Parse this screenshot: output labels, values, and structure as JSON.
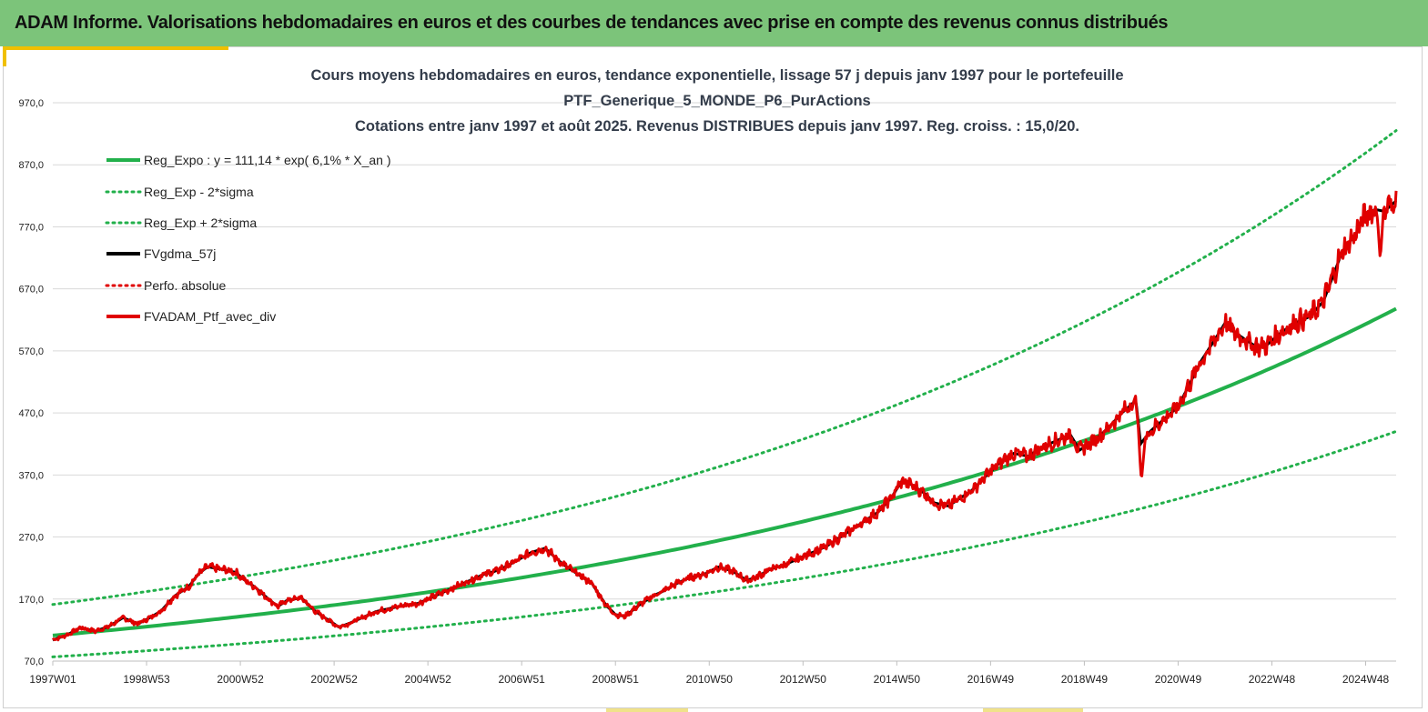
{
  "header": {
    "title": "ADAM Informe. Valorisations hebdomadaires en euros et des courbes de tendances avec prise en compte des revenus connus distribués",
    "bg_color": "#7cc47a"
  },
  "chart_data": {
    "type": "line",
    "title_lines": [
      "Cours moyens hebdomadaires  en euros, tendance exponentielle, lissage 57 j depuis janv 1997 pour le portefeuille",
      "PTF_Generique_5_MONDE_P6_PurActions",
      "Cotations  entre janv 1997 et août 2025. Revenus DISTRIBUES depuis janv 1997. Reg. croiss. : 15,0/20."
    ],
    "xlabel": "",
    "ylabel": "",
    "x_range": [
      1997.0,
      2025.65
    ],
    "ylim": [
      70,
      970
    ],
    "y_ticks": [
      "970,0",
      "870,0",
      "770,0",
      "670,0",
      "570,0",
      "470,0",
      "370,0",
      "270,0",
      "170,0",
      "70,0"
    ],
    "x_ticks": [
      {
        "label": "1997W01",
        "year": 1997.0
      },
      {
        "label": "1998W53",
        "year": 1999.0
      },
      {
        "label": "2000W52",
        "year": 2001.0
      },
      {
        "label": "2002W52",
        "year": 2003.0
      },
      {
        "label": "2004W52",
        "year": 2005.0
      },
      {
        "label": "2006W51",
        "year": 2007.0
      },
      {
        "label": "2008W51",
        "year": 2009.0
      },
      {
        "label": "2010W50",
        "year": 2011.0
      },
      {
        "label": "2012W50",
        "year": 2013.0
      },
      {
        "label": "2014W50",
        "year": 2015.0
      },
      {
        "label": "2016W49",
        "year": 2017.0
      },
      {
        "label": "2018W49",
        "year": 2019.0
      },
      {
        "label": "2020W49",
        "year": 2021.0
      },
      {
        "label": "2022W48",
        "year": 2023.0
      },
      {
        "label": "2024W48",
        "year": 2025.0
      }
    ],
    "grid": true,
    "legend_position": "top-left",
    "regression": {
      "a": 111.14,
      "rate": 0.061,
      "lower_factor": 0.69,
      "upper_factor": 1.45
    },
    "series": [
      {
        "name": "Reg_Expo : y = 111,14 * exp( 6,1% *  X_an )",
        "color": "#22b04b",
        "style": "solid"
      },
      {
        "name": "Reg_Exp - 2*sigma",
        "color": "#22b04b",
        "style": "dotted"
      },
      {
        "name": "Reg_Exp + 2*sigma",
        "color": "#22b04b",
        "style": "dotted"
      },
      {
        "name": "FVgdma_57j",
        "color": "#000000",
        "style": "solid"
      },
      {
        "name": "Perfo. absolue",
        "color": "#e00000",
        "style": "dotted"
      },
      {
        "name": "FVADAM_Ptf_avec_div",
        "color": "#e00000",
        "style": "solid"
      }
    ],
    "price_points": [
      [
        1997.0,
        104
      ],
      [
        1997.3,
        112
      ],
      [
        1997.6,
        124
      ],
      [
        1997.9,
        118
      ],
      [
        1998.2,
        126
      ],
      [
        1998.5,
        140
      ],
      [
        1998.8,
        130
      ],
      [
        1999.0,
        137
      ],
      [
        1999.3,
        150
      ],
      [
        1999.6,
        175
      ],
      [
        1999.9,
        190
      ],
      [
        2000.1,
        210
      ],
      [
        2000.3,
        222
      ],
      [
        2000.6,
        218
      ],
      [
        2000.9,
        213
      ],
      [
        2001.1,
        200
      ],
      [
        2001.3,
        190
      ],
      [
        2001.6,
        170
      ],
      [
        2001.8,
        158
      ],
      [
        2002.0,
        168
      ],
      [
        2002.3,
        172
      ],
      [
        2002.6,
        150
      ],
      [
        2002.9,
        135
      ],
      [
        2003.1,
        125
      ],
      [
        2003.3,
        130
      ],
      [
        2003.6,
        140
      ],
      [
        2003.9,
        150
      ],
      [
        2004.2,
        155
      ],
      [
        2004.5,
        160
      ],
      [
        2004.8,
        163
      ],
      [
        2005.0,
        170
      ],
      [
        2005.3,
        180
      ],
      [
        2005.6,
        190
      ],
      [
        2005.9,
        200
      ],
      [
        2006.2,
        210
      ],
      [
        2006.4,
        214
      ],
      [
        2006.6,
        220
      ],
      [
        2006.9,
        232
      ],
      [
        2007.2,
        245
      ],
      [
        2007.5,
        252
      ],
      [
        2007.7,
        238
      ],
      [
        2007.9,
        225
      ],
      [
        2008.2,
        210
      ],
      [
        2008.5,
        195
      ],
      [
        2008.8,
        160
      ],
      [
        2009.0,
        145
      ],
      [
        2009.2,
        142
      ],
      [
        2009.5,
        160
      ],
      [
        2009.8,
        175
      ],
      [
        2010.0,
        182
      ],
      [
        2010.3,
        195
      ],
      [
        2010.6,
        205
      ],
      [
        2010.9,
        210
      ],
      [
        2011.2,
        222
      ],
      [
        2011.5,
        215
      ],
      [
        2011.8,
        200
      ],
      [
        2012.0,
        205
      ],
      [
        2012.3,
        218
      ],
      [
        2012.6,
        225
      ],
      [
        2012.9,
        235
      ],
      [
        2013.2,
        245
      ],
      [
        2013.5,
        255
      ],
      [
        2013.8,
        270
      ],
      [
        2014.0,
        280
      ],
      [
        2014.3,
        295
      ],
      [
        2014.6,
        310
      ],
      [
        2014.9,
        335
      ],
      [
        2015.1,
        360
      ],
      [
        2015.3,
        355
      ],
      [
        2015.6,
        340
      ],
      [
        2015.8,
        325
      ],
      [
        2016.1,
        320
      ],
      [
        2016.3,
        330
      ],
      [
        2016.6,
        345
      ],
      [
        2016.9,
        368
      ],
      [
        2017.2,
        390
      ],
      [
        2017.5,
        405
      ],
      [
        2017.8,
        400
      ],
      [
        2018.1,
        415
      ],
      [
        2018.4,
        425
      ],
      [
        2018.7,
        435
      ],
      [
        2018.9,
        410
      ],
      [
        2019.2,
        425
      ],
      [
        2019.5,
        445
      ],
      [
        2019.8,
        470
      ],
      [
        2020.1,
        490
      ],
      [
        2020.2,
        420
      ],
      [
        2020.4,
        440
      ],
      [
        2020.7,
        460
      ],
      [
        2021.0,
        480
      ],
      [
        2021.2,
        510
      ],
      [
        2021.5,
        555
      ],
      [
        2021.8,
        590
      ],
      [
        2022.0,
        615
      ],
      [
        2022.2,
        600
      ],
      [
        2022.4,
        590
      ],
      [
        2022.7,
        575
      ],
      [
        2022.9,
        580
      ],
      [
        2023.2,
        600
      ],
      [
        2023.5,
        615
      ],
      [
        2023.8,
        625
      ],
      [
        2024.1,
        650
      ],
      [
        2024.3,
        690
      ],
      [
        2024.5,
        730
      ],
      [
        2024.8,
        760
      ],
      [
        2025.0,
        790
      ],
      [
        2025.2,
        798
      ],
      [
        2025.4,
        795
      ],
      [
        2025.65,
        812
      ]
    ]
  }
}
